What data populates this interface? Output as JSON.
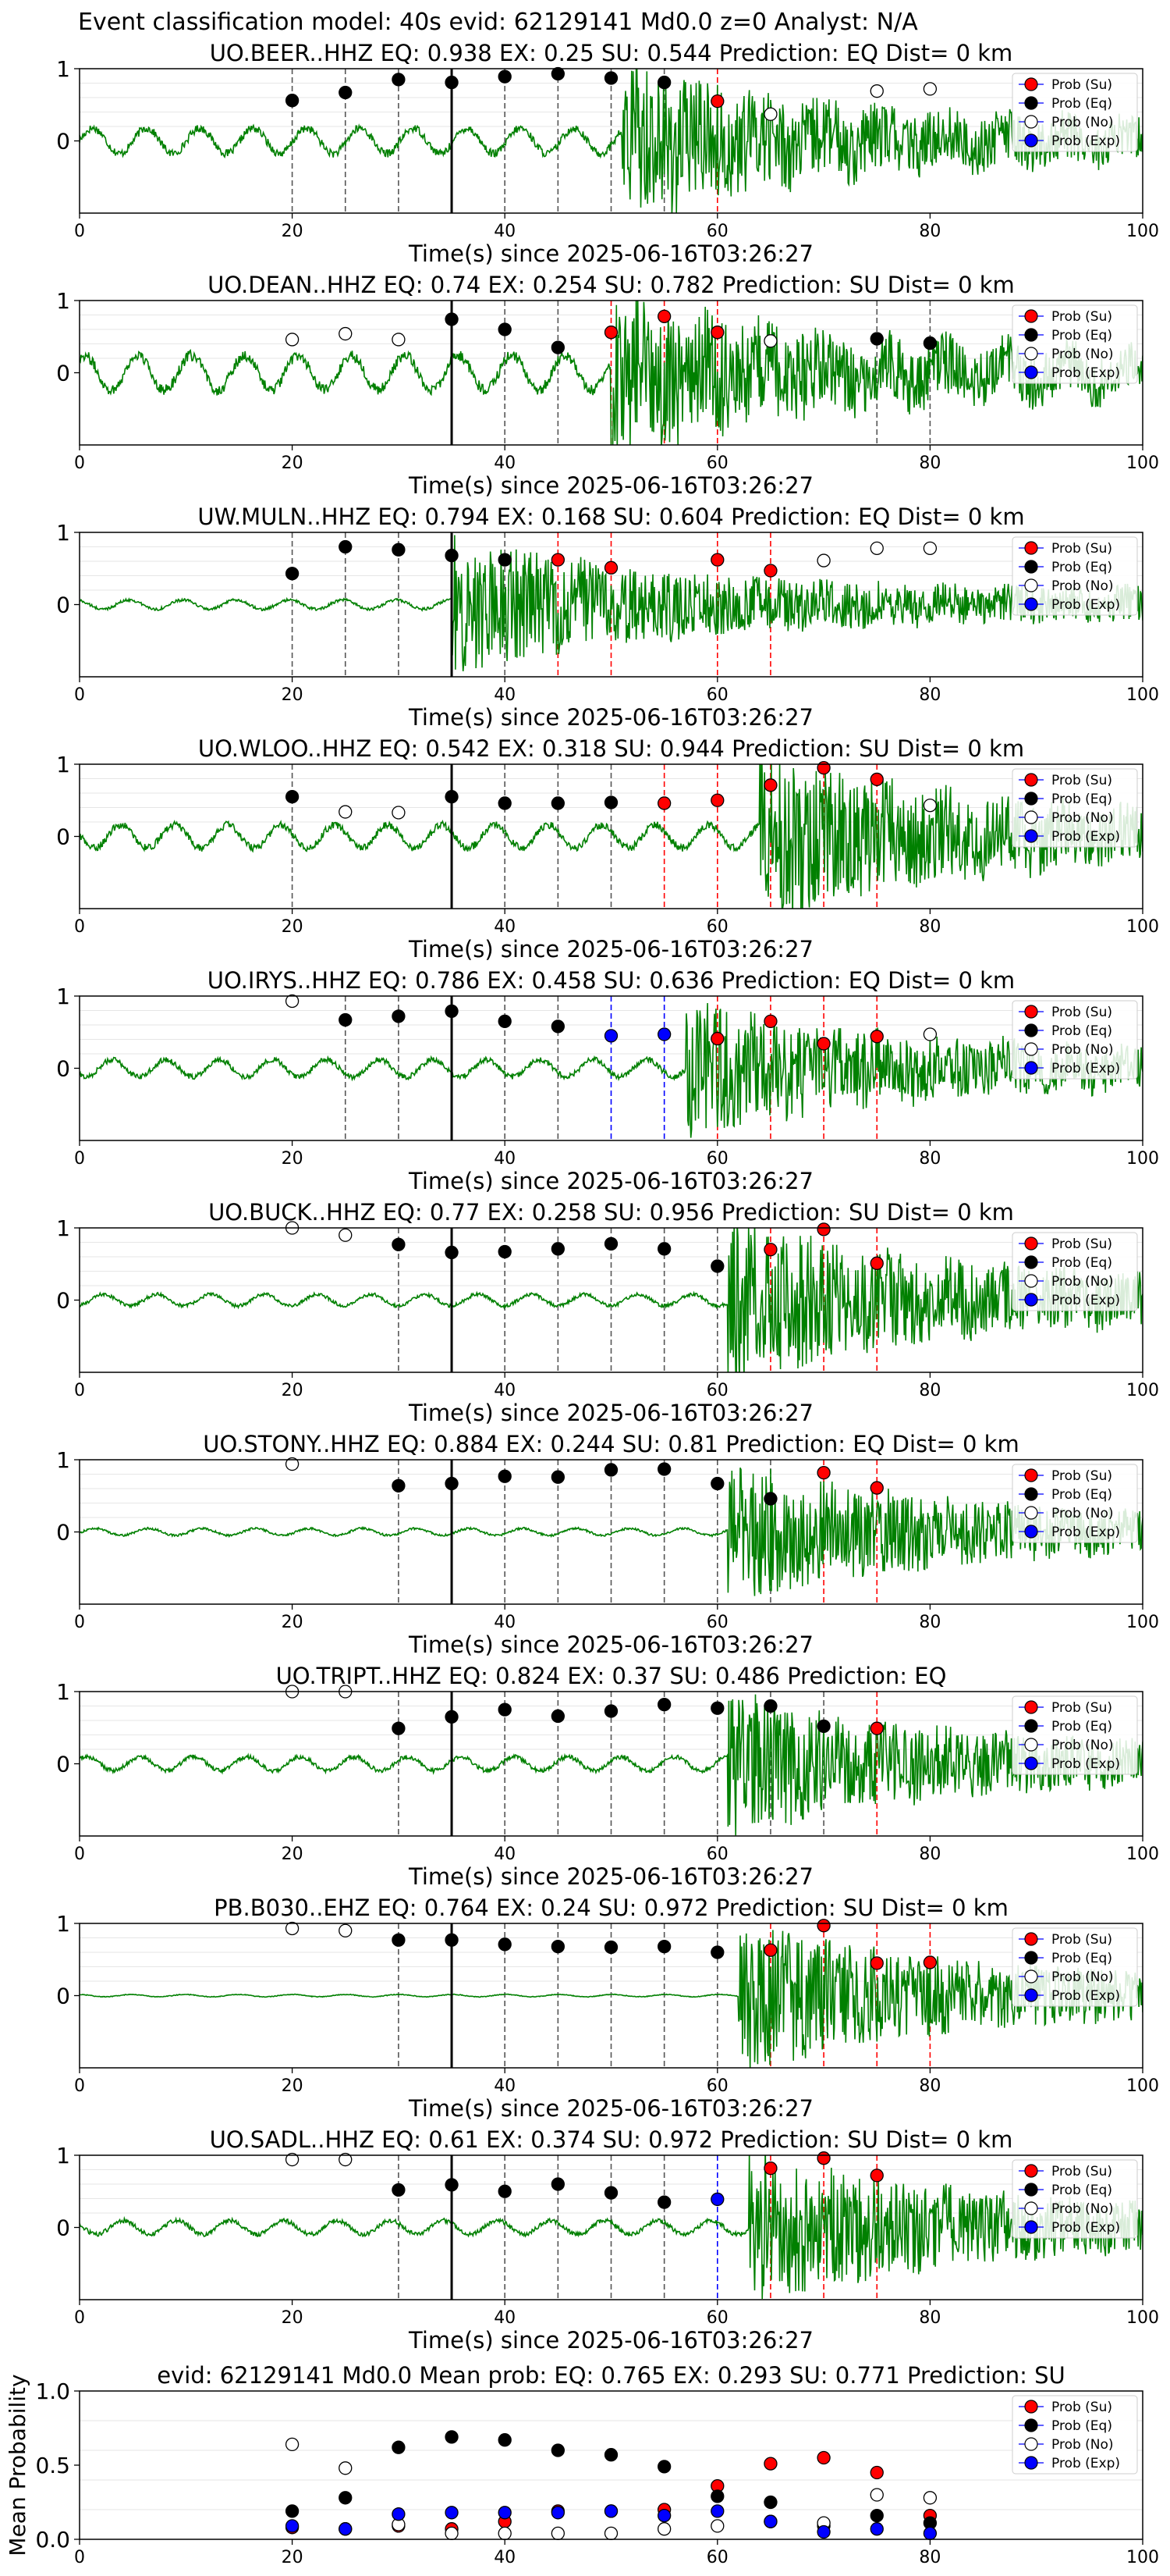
{
  "figure_title": "Event classification model: 40s evid: 62129141 Md0.0 z=0 Analyst: N/A",
  "legend": [
    "Prob (Su)",
    "Prob (Eq)",
    "Prob (No)",
    "Prob (Exp)"
  ],
  "colors": {
    "su": "#ff0000",
    "eq": "#000000",
    "no": "#ffffff",
    "exp": "#0000ff",
    "waveform": "#008000",
    "grid": "#e6e6e6"
  },
  "xlabel": "Time(s) since 2025-06-16T03:26:27",
  "chart_data": [
    {
      "type": "scatter",
      "title": "UO.BEER..HHZ   EQ: 0.938  EX: 0.25  SU: 0.544   Prediction: EQ    Dist= 0 km",
      "xlim": [
        0,
        100
      ],
      "ylim": [
        -1,
        1
      ],
      "yticks": [
        "1",
        "0"
      ],
      "xticks": [
        "0",
        "20",
        "40",
        "60",
        "80",
        "100"
      ],
      "pick_time": 35,
      "waveform_onset": 51,
      "waveform_pre_amp": 0.22,
      "waveform_post_amp": 0.55,
      "series": [
        {
          "name": "Prob (Eq)",
          "x": [
            20,
            25,
            30,
            35,
            40,
            45,
            50,
            55
          ],
          "y": [
            0.56,
            0.67,
            0.85,
            0.81,
            0.89,
            0.93,
            0.87,
            0.81
          ]
        },
        {
          "name": "Prob (Su)",
          "x": [
            60
          ],
          "y": [
            0.55
          ]
        },
        {
          "name": "Prob (No)",
          "x": [
            65,
            75,
            80
          ],
          "y": [
            0.37,
            0.69,
            0.72
          ]
        },
        {
          "name": "Prob (Exp)",
          "x": [],
          "y": []
        }
      ]
    },
    {
      "type": "scatter",
      "title": "UO.DEAN..HHZ   EQ: 0.74  EX: 0.254  SU: 0.782   Prediction: SU    Dist= 0 km",
      "xlim": [
        0,
        100
      ],
      "ylim": [
        -1,
        1
      ],
      "yticks": [
        "1",
        "0"
      ],
      "xticks": [
        "0",
        "20",
        "40",
        "60",
        "80",
        "100"
      ],
      "pick_time": 35,
      "waveform_onset": 50,
      "waveform_pre_amp": 0.3,
      "waveform_post_amp": 0.6,
      "series": [
        {
          "name": "Prob (Eq)",
          "x": [
            35,
            40,
            45,
            75,
            80
          ],
          "y": [
            0.74,
            0.6,
            0.35,
            0.47,
            0.41
          ]
        },
        {
          "name": "Prob (Su)",
          "x": [
            50,
            55,
            60
          ],
          "y": [
            0.56,
            0.78,
            0.56
          ]
        },
        {
          "name": "Prob (No)",
          "x": [
            20,
            25,
            30,
            65
          ],
          "y": [
            0.46,
            0.54,
            0.46,
            0.44
          ]
        },
        {
          "name": "Prob (Exp)",
          "x": [],
          "y": []
        }
      ]
    },
    {
      "type": "scatter",
      "title": "UW.MULN..HHZ   EQ: 0.794  EX: 0.168  SU: 0.604   Prediction: EQ    Dist= 0 km",
      "xlim": [
        0,
        100
      ],
      "ylim": [
        -1,
        1
      ],
      "yticks": [
        "1",
        "0"
      ],
      "xticks": [
        "0",
        "20",
        "40",
        "60",
        "80",
        "100"
      ],
      "pick_time": 35,
      "waveform_onset": 35,
      "waveform_pre_amp": 0.08,
      "waveform_post_amp": 0.5,
      "series": [
        {
          "name": "Prob (Eq)",
          "x": [
            20,
            25,
            30,
            35,
            40
          ],
          "y": [
            0.43,
            0.8,
            0.76,
            0.68,
            0.62
          ]
        },
        {
          "name": "Prob (Su)",
          "x": [
            45,
            50,
            60,
            65
          ],
          "y": [
            0.62,
            0.51,
            0.62,
            0.47
          ]
        },
        {
          "name": "Prob (No)",
          "x": [
            70,
            75,
            80
          ],
          "y": [
            0.61,
            0.78,
            0.78
          ]
        },
        {
          "name": "Prob (Exp)",
          "x": [],
          "y": []
        }
      ]
    },
    {
      "type": "scatter",
      "title": "UO.WLOO..HHZ   EQ: 0.542  EX: 0.318  SU: 0.944   Prediction: SU    Dist= 0 km",
      "xlim": [
        0,
        100
      ],
      "ylim": [
        -1,
        1
      ],
      "yticks": [
        "1",
        "0"
      ],
      "xticks": [
        "0",
        "20",
        "40",
        "60",
        "80",
        "100"
      ],
      "pick_time": 35,
      "waveform_onset": 64,
      "waveform_pre_amp": 0.2,
      "waveform_post_amp": 0.6,
      "series": [
        {
          "name": "Prob (Eq)",
          "x": [
            20,
            35,
            40,
            45,
            50
          ],
          "y": [
            0.55,
            0.55,
            0.46,
            0.46,
            0.47
          ]
        },
        {
          "name": "Prob (Su)",
          "x": [
            55,
            60,
            65,
            70,
            75
          ],
          "y": [
            0.46,
            0.5,
            0.71,
            0.95,
            0.79
          ]
        },
        {
          "name": "Prob (No)",
          "x": [
            25,
            30,
            80
          ],
          "y": [
            0.34,
            0.33,
            0.43
          ]
        },
        {
          "name": "Prob (Exp)",
          "x": [],
          "y": []
        }
      ]
    },
    {
      "type": "scatter",
      "title": "UO.IRYS..HHZ   EQ: 0.786  EX: 0.458  SU: 0.636   Prediction: EQ    Dist= 0 km",
      "xlim": [
        0,
        100
      ],
      "ylim": [
        -1,
        1
      ],
      "yticks": [
        "1",
        "0"
      ],
      "xticks": [
        "0",
        "20",
        "40",
        "60",
        "80",
        "100"
      ],
      "pick_time": 35,
      "waveform_onset": 57,
      "waveform_pre_amp": 0.15,
      "waveform_post_amp": 0.5,
      "series": [
        {
          "name": "Prob (Eq)",
          "x": [
            25,
            30,
            35,
            40,
            45
          ],
          "y": [
            0.67,
            0.72,
            0.79,
            0.65,
            0.58
          ]
        },
        {
          "name": "Prob (Exp)",
          "x": [
            50,
            55
          ],
          "y": [
            0.45,
            0.47
          ]
        },
        {
          "name": "Prob (Su)",
          "x": [
            60,
            65,
            70,
            75
          ],
          "y": [
            0.41,
            0.65,
            0.34,
            0.44
          ]
        },
        {
          "name": "Prob (No)",
          "x": [
            20,
            80
          ],
          "y": [
            0.93,
            0.47
          ]
        }
      ]
    },
    {
      "type": "scatter",
      "title": "UO.BUCK..HHZ   EQ: 0.77  EX: 0.258  SU: 0.956   Prediction: SU    Dist= 0 km",
      "xlim": [
        0,
        100
      ],
      "ylim": [
        -1,
        1
      ],
      "yticks": [
        "1",
        "0"
      ],
      "xticks": [
        "0",
        "20",
        "40",
        "60",
        "80",
        "100"
      ],
      "pick_time": 35,
      "waveform_onset": 61,
      "waveform_pre_amp": 0.1,
      "waveform_post_amp": 0.6,
      "series": [
        {
          "name": "Prob (Eq)",
          "x": [
            30,
            35,
            40,
            45,
            50,
            55,
            60
          ],
          "y": [
            0.77,
            0.66,
            0.67,
            0.71,
            0.78,
            0.71,
            0.47
          ]
        },
        {
          "name": "Prob (Su)",
          "x": [
            65,
            70,
            75
          ],
          "y": [
            0.7,
            0.98,
            0.51
          ]
        },
        {
          "name": "Prob (No)",
          "x": [
            20,
            25
          ],
          "y": [
            1.0,
            0.9
          ]
        },
        {
          "name": "Prob (Exp)",
          "x": [],
          "y": []
        }
      ]
    },
    {
      "type": "scatter",
      "title": "UO.STONY..HHZ   EQ: 0.884  EX: 0.244  SU: 0.81   Prediction: EQ    Dist= 0 km",
      "xlim": [
        0,
        100
      ],
      "ylim": [
        -1,
        1
      ],
      "yticks": [
        "1",
        "0"
      ],
      "xticks": [
        "0",
        "20",
        "40",
        "60",
        "80",
        "100"
      ],
      "pick_time": 35,
      "waveform_onset": 61,
      "waveform_pre_amp": 0.06,
      "waveform_post_amp": 0.5,
      "series": [
        {
          "name": "Prob (Eq)",
          "x": [
            30,
            35,
            40,
            45,
            50,
            55,
            60,
            65
          ],
          "y": [
            0.64,
            0.67,
            0.77,
            0.76,
            0.86,
            0.87,
            0.67,
            0.46
          ]
        },
        {
          "name": "Prob (Su)",
          "x": [
            70,
            75
          ],
          "y": [
            0.82,
            0.61
          ]
        },
        {
          "name": "Prob (No)",
          "x": [
            20
          ],
          "y": [
            0.94
          ]
        },
        {
          "name": "Prob (Exp)",
          "x": [],
          "y": []
        }
      ]
    },
    {
      "type": "scatter",
      "title": "UO.TRIPT..HHZ   EQ: 0.824  EX: 0.37  SU: 0.486   Prediction: EQ",
      "xlim": [
        0,
        100
      ],
      "ylim": [
        -1,
        1
      ],
      "yticks": [
        "1",
        "0"
      ],
      "xticks": [
        "0",
        "20",
        "40",
        "60",
        "80",
        "100"
      ],
      "pick_time": 35,
      "waveform_onset": 61,
      "waveform_pre_amp": 0.12,
      "waveform_post_amp": 0.5,
      "series": [
        {
          "name": "Prob (Eq)",
          "x": [
            30,
            35,
            40,
            45,
            50,
            55,
            60,
            65,
            70
          ],
          "y": [
            0.49,
            0.65,
            0.75,
            0.66,
            0.73,
            0.82,
            0.77,
            0.8,
            0.52
          ]
        },
        {
          "name": "Prob (Su)",
          "x": [
            75
          ],
          "y": [
            0.49
          ]
        },
        {
          "name": "Prob (No)",
          "x": [
            20,
            25
          ],
          "y": [
            1.0,
            1.0
          ]
        },
        {
          "name": "Prob (Exp)",
          "x": [],
          "y": []
        }
      ]
    },
    {
      "type": "scatter",
      "title": "PB.B030..EHZ   EQ: 0.764  EX: 0.24  SU: 0.972   Prediction: SU    Dist= 0 km",
      "xlim": [
        0,
        100
      ],
      "ylim": [
        -1,
        1
      ],
      "yticks": [
        "1",
        "0"
      ],
      "xticks": [
        "0",
        "20",
        "40",
        "60",
        "80",
        "100"
      ],
      "pick_time": 35,
      "waveform_onset": 62,
      "waveform_pre_amp": 0.02,
      "waveform_post_amp": 0.55,
      "series": [
        {
          "name": "Prob (Eq)",
          "x": [
            30,
            35,
            40,
            45,
            50,
            55,
            60
          ],
          "y": [
            0.77,
            0.77,
            0.71,
            0.68,
            0.67,
            0.68,
            0.6
          ]
        },
        {
          "name": "Prob (Su)",
          "x": [
            65,
            70,
            75,
            80
          ],
          "y": [
            0.63,
            0.97,
            0.45,
            0.46
          ]
        },
        {
          "name": "Prob (No)",
          "x": [
            20,
            25
          ],
          "y": [
            0.93,
            0.9
          ]
        },
        {
          "name": "Prob (Exp)",
          "x": [],
          "y": []
        }
      ]
    },
    {
      "type": "scatter",
      "title": "UO.SADL..HHZ   EQ: 0.61  EX: 0.374  SU: 0.972   Prediction: SU    Dist= 0 km",
      "xlim": [
        0,
        100
      ],
      "ylim": [
        -1,
        1
      ],
      "yticks": [
        "1",
        "0"
      ],
      "xticks": [
        "0",
        "20",
        "40",
        "60",
        "80",
        "100"
      ],
      "pick_time": 35,
      "waveform_onset": 63,
      "waveform_pre_amp": 0.12,
      "waveform_post_amp": 0.55,
      "series": [
        {
          "name": "Prob (Eq)",
          "x": [
            30,
            35,
            40,
            45,
            50,
            55
          ],
          "y": [
            0.52,
            0.59,
            0.5,
            0.6,
            0.48,
            0.35
          ]
        },
        {
          "name": "Prob (Exp)",
          "x": [
            60
          ],
          "y": [
            0.39
          ]
        },
        {
          "name": "Prob (Su)",
          "x": [
            65,
            70,
            75
          ],
          "y": [
            0.82,
            0.96,
            0.72
          ]
        },
        {
          "name": "Prob (No)",
          "x": [
            20,
            25
          ],
          "y": [
            0.94,
            0.94
          ]
        }
      ]
    },
    {
      "type": "scatter",
      "title": "evid: 62129141  Md0.0   Mean prob:   EQ: 0.765  EX: 0.293  SU: 0.771   Prediction: SU",
      "ylabel": "Mean Probability",
      "xlim": [
        0,
        100
      ],
      "ylim": [
        0,
        1
      ],
      "yticks": [
        "1.0",
        "0.5",
        "0.0"
      ],
      "xticks": [
        "0",
        "20",
        "40",
        "60",
        "80",
        "100"
      ],
      "series": [
        {
          "name": "Prob (Su)",
          "x": [
            20,
            25,
            30,
            35,
            40,
            45,
            50,
            55,
            60,
            65,
            70,
            75,
            80
          ],
          "y": [
            0.08,
            0.07,
            0.09,
            0.07,
            0.12,
            0.19,
            0.19,
            0.2,
            0.36,
            0.51,
            0.55,
            0.45,
            0.16
          ]
        },
        {
          "name": "Prob (Eq)",
          "x": [
            20,
            25,
            30,
            35,
            40,
            45,
            50,
            55,
            60,
            65,
            70,
            75,
            80
          ],
          "y": [
            0.19,
            0.28,
            0.62,
            0.69,
            0.67,
            0.6,
            0.57,
            0.49,
            0.29,
            0.25,
            0.09,
            0.16,
            0.11
          ]
        },
        {
          "name": "Prob (No)",
          "x": [
            20,
            25,
            30,
            35,
            40,
            45,
            50,
            55,
            60,
            65,
            70,
            75,
            80
          ],
          "y": [
            0.64,
            0.48,
            0.1,
            0.04,
            0.04,
            0.04,
            0.04,
            0.07,
            0.09,
            0.12,
            0.11,
            0.3,
            0.28
          ]
        },
        {
          "name": "Prob (Exp)",
          "x": [
            20,
            25,
            30,
            35,
            40,
            45,
            50,
            55,
            60,
            65,
            70,
            75,
            80
          ],
          "y": [
            0.09,
            0.07,
            0.17,
            0.18,
            0.18,
            0.18,
            0.19,
            0.16,
            0.19,
            0.12,
            0.05,
            0.07,
            0.04
          ]
        }
      ]
    }
  ]
}
